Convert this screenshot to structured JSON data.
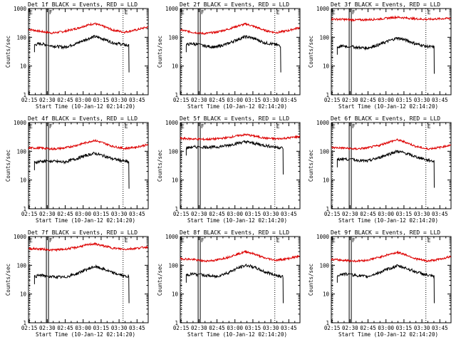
{
  "figure": {
    "x_axis_title": "Start Time (10-Jan-12 02:14:20)",
    "y_axis_title": "Counts/sec",
    "x_tick_labels": [
      "02:15",
      "02:30",
      "02:45",
      "03:00",
      "03:15",
      "03:30",
      "03:45"
    ],
    "y_tick_labels": [
      "1",
      "10",
      "100",
      "1000"
    ],
    "marker_labels": [
      "E",
      "F",
      "E"
    ],
    "colors": {
      "events": "#000000",
      "lld": "#dd0000",
      "axes": "#000000"
    }
  },
  "chart_data": [
    {
      "type": "line",
      "title": "Det 1f BLACK = Events, RED = LLD",
      "xlabel": "Start Time (10-Jan-12 02:14:20)",
      "ylabel": "Counts/sec",
      "xlim_minutes": [
        0,
        100
      ],
      "ylim": [
        1,
        1000
      ],
      "yscale": "log",
      "series": [
        {
          "name": "LLD",
          "color": "#dd0000",
          "x": [
            0,
            10,
            20,
            30,
            40,
            50,
            55,
            60,
            70,
            80,
            90,
            100
          ],
          "y": [
            190,
            160,
            140,
            160,
            200,
            270,
            300,
            260,
            180,
            150,
            180,
            230
          ]
        },
        {
          "name": "Events",
          "color": "#000000",
          "x": [
            5,
            10,
            20,
            30,
            40,
            50,
            55,
            60,
            70,
            80,
            84
          ],
          "y": [
            55,
            60,
            50,
            45,
            60,
            90,
            105,
            95,
            65,
            55,
            50
          ]
        }
      ],
      "dotted_markers_minutes": [
        16,
        79
      ],
      "marker_sequence": "E, F, E"
    },
    {
      "type": "line",
      "title": "Det 2f BLACK = Events, RED = LLD",
      "xlabel": "Start Time (10-Jan-12 02:14:20)",
      "ylabel": "Counts/sec",
      "xlim_minutes": [
        0,
        100
      ],
      "ylim": [
        1,
        1000
      ],
      "yscale": "log",
      "series": [
        {
          "name": "LLD",
          "color": "#dd0000",
          "x": [
            0,
            10,
            20,
            30,
            40,
            50,
            55,
            60,
            70,
            80,
            90,
            100
          ],
          "y": [
            180,
            150,
            135,
            150,
            190,
            260,
            290,
            250,
            175,
            145,
            170,
            220
          ]
        },
        {
          "name": "Events",
          "color": "#000000",
          "x": [
            5,
            10,
            20,
            30,
            40,
            50,
            55,
            60,
            70,
            80,
            84
          ],
          "y": [
            55,
            60,
            50,
            45,
            60,
            90,
            105,
            95,
            65,
            55,
            50
          ]
        }
      ],
      "dotted_markers_minutes": [
        16,
        79
      ],
      "marker_sequence": "E, F, E"
    },
    {
      "type": "line",
      "title": "Det 3f BLACK = Events, RED = LLD",
      "xlabel": "Start Time (10-Jan-12 02:14:20)",
      "ylabel": "Counts/sec",
      "xlim_minutes": [
        0,
        100
      ],
      "ylim": [
        1,
        1000
      ],
      "yscale": "log",
      "series": [
        {
          "name": "LLD",
          "color": "#dd0000",
          "x": [
            0,
            10,
            20,
            30,
            40,
            50,
            55,
            60,
            70,
            80,
            90,
            100
          ],
          "y": [
            430,
            420,
            400,
            410,
            430,
            480,
            500,
            480,
            440,
            420,
            440,
            460
          ]
        },
        {
          "name": "Events",
          "color": "#000000",
          "x": [
            5,
            10,
            20,
            30,
            40,
            50,
            55,
            60,
            70,
            80,
            86
          ],
          "y": [
            45,
            50,
            45,
            42,
            55,
            80,
            95,
            85,
            60,
            48,
            45
          ]
        }
      ],
      "dotted_markers_minutes": [
        16,
        79
      ],
      "marker_sequence": "E, F, E"
    },
    {
      "type": "line",
      "title": "Det 4f BLACK = Events, RED = LLD",
      "xlabel": "Start Time (10-Jan-12 02:14:20)",
      "ylabel": "Counts/sec",
      "xlim_minutes": [
        0,
        100
      ],
      "ylim": [
        1,
        1000
      ],
      "yscale": "log",
      "series": [
        {
          "name": "LLD",
          "color": "#dd0000",
          "x": [
            0,
            10,
            20,
            30,
            40,
            50,
            55,
            60,
            70,
            80,
            90,
            100
          ],
          "y": [
            130,
            130,
            120,
            130,
            160,
            210,
            240,
            210,
            150,
            125,
            140,
            170
          ]
        },
        {
          "name": "Events",
          "color": "#000000",
          "x": [
            5,
            10,
            20,
            30,
            40,
            50,
            55,
            60,
            70,
            80,
            84
          ],
          "y": [
            40,
            45,
            45,
            42,
            55,
            75,
            85,
            75,
            55,
            45,
            42
          ]
        }
      ],
      "dotted_markers_minutes": [
        16,
        79
      ],
      "marker_sequence": "E, F, E"
    },
    {
      "type": "line",
      "title": "Det 5f BLACK = Events, RED = LLD",
      "xlabel": "Start Time (10-Jan-12 02:14:20)",
      "ylabel": "Counts/sec",
      "xlim_minutes": [
        0,
        100
      ],
      "ylim": [
        1,
        1000
      ],
      "yscale": "log",
      "series": [
        {
          "name": "LLD",
          "color": "#dd0000",
          "x": [
            0,
            10,
            20,
            30,
            40,
            50,
            55,
            60,
            70,
            80,
            90,
            100
          ],
          "y": [
            280,
            270,
            260,
            270,
            300,
            360,
            380,
            350,
            290,
            270,
            290,
            330
          ]
        },
        {
          "name": "Events",
          "color": "#000000",
          "x": [
            5,
            10,
            20,
            30,
            40,
            50,
            55,
            60,
            70,
            80,
            86
          ],
          "y": [
            130,
            140,
            140,
            140,
            160,
            200,
            215,
            195,
            160,
            140,
            130
          ]
        }
      ],
      "dotted_markers_minutes": [
        16,
        79
      ],
      "marker_sequence": "E, F, E"
    },
    {
      "type": "line",
      "title": "Det 6f BLACK = Events, RED = LLD",
      "xlabel": "Start Time (10-Jan-12 02:14:20)",
      "ylabel": "Counts/sec",
      "xlim_minutes": [
        0,
        100
      ],
      "ylim": [
        1,
        1000
      ],
      "yscale": "log",
      "series": [
        {
          "name": "LLD",
          "color": "#dd0000",
          "x": [
            0,
            10,
            20,
            30,
            40,
            50,
            55,
            60,
            70,
            80,
            90,
            100
          ],
          "y": [
            135,
            130,
            120,
            130,
            160,
            220,
            250,
            220,
            150,
            120,
            135,
            165
          ]
        },
        {
          "name": "Events",
          "color": "#000000",
          "x": [
            5,
            10,
            20,
            30,
            40,
            50,
            55,
            60,
            70,
            80,
            86
          ],
          "y": [
            50,
            55,
            50,
            45,
            60,
            85,
            100,
            90,
            65,
            50,
            45
          ]
        }
      ],
      "dotted_markers_minutes": [
        16,
        79
      ],
      "marker_sequence": "E, F, E"
    },
    {
      "type": "line",
      "title": "Det 7f BLACK = Events, RED = LLD",
      "xlabel": "Start Time (10-Jan-12 02:14:20)",
      "ylabel": "Counts/sec",
      "xlim_minutes": [
        0,
        100
      ],
      "ylim": [
        1,
        1000
      ],
      "yscale": "log",
      "series": [
        {
          "name": "LLD",
          "color": "#dd0000",
          "x": [
            0,
            10,
            20,
            30,
            40,
            50,
            55,
            60,
            70,
            80,
            90,
            100
          ],
          "y": [
            380,
            370,
            340,
            360,
            420,
            520,
            560,
            500,
            400,
            360,
            390,
            440
          ]
        },
        {
          "name": "Events",
          "color": "#000000",
          "x": [
            5,
            10,
            20,
            30,
            40,
            50,
            55,
            60,
            70,
            80,
            84
          ],
          "y": [
            40,
            45,
            40,
            38,
            50,
            75,
            90,
            80,
            55,
            42,
            40
          ]
        }
      ],
      "dotted_markers_minutes": [
        16,
        79
      ],
      "marker_sequence": "E, F, E"
    },
    {
      "type": "line",
      "title": "Det 8f BLACK = Events, RED = LLD",
      "xlabel": "Start Time (10-Jan-12 02:14:20)",
      "ylabel": "Counts/sec",
      "xlim_minutes": [
        0,
        100
      ],
      "ylim": [
        1,
        1000
      ],
      "yscale": "log",
      "series": [
        {
          "name": "LLD",
          "color": "#dd0000",
          "x": [
            0,
            10,
            20,
            30,
            40,
            50,
            55,
            60,
            70,
            80,
            90,
            100
          ],
          "y": [
            170,
            160,
            140,
            150,
            190,
            260,
            300,
            260,
            180,
            150,
            170,
            210
          ]
        },
        {
          "name": "Events",
          "color": "#000000",
          "x": [
            5,
            10,
            20,
            30,
            40,
            50,
            55,
            60,
            70,
            80,
            86
          ],
          "y": [
            45,
            50,
            45,
            40,
            55,
            85,
            100,
            90,
            60,
            45,
            40
          ]
        }
      ],
      "dotted_markers_minutes": [
        16,
        79
      ],
      "marker_sequence": "E, F, E"
    },
    {
      "type": "line",
      "title": "Det 9f BLACK = Events, RED = LLD",
      "xlabel": "Start Time (10-Jan-12 02:14:20)",
      "ylabel": "Counts/sec",
      "xlim_minutes": [
        0,
        100
      ],
      "ylim": [
        1,
        1000
      ],
      "yscale": "log",
      "series": [
        {
          "name": "LLD",
          "color": "#dd0000",
          "x": [
            0,
            10,
            20,
            30,
            40,
            50,
            55,
            60,
            70,
            80,
            90,
            100
          ],
          "y": [
            160,
            150,
            140,
            150,
            190,
            250,
            280,
            250,
            170,
            140,
            160,
            200
          ]
        },
        {
          "name": "Events",
          "color": "#000000",
          "x": [
            5,
            10,
            20,
            30,
            40,
            50,
            55,
            60,
            70,
            80,
            86
          ],
          "y": [
            45,
            50,
            45,
            40,
            55,
            80,
            95,
            85,
            60,
            45,
            40
          ]
        }
      ],
      "dotted_markers_minutes": [
        16,
        79
      ],
      "marker_sequence": "E, F, E"
    }
  ]
}
